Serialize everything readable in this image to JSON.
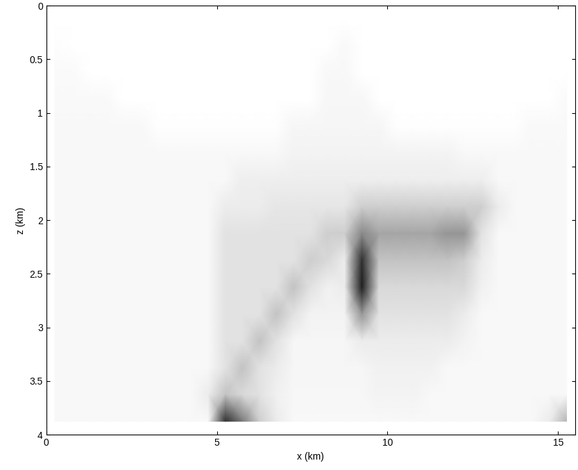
{
  "chart_data": {
    "type": "heatmap",
    "xlabel": "x (km)",
    "ylabel": "z (km)",
    "xlim": [
      0,
      15.5
    ],
    "ylim": [
      4,
      0
    ],
    "xticks": [
      0,
      5,
      10,
      15
    ],
    "yticks": [
      0,
      0.5,
      1,
      1.5,
      2,
      2.5,
      3,
      3.5,
      4
    ],
    "x": [
      0.25,
      0.75,
      1.25,
      1.75,
      2.25,
      2.75,
      3.25,
      3.75,
      4.25,
      4.75,
      5.25,
      5.75,
      6.25,
      6.75,
      7.25,
      7.75,
      8.25,
      8.75,
      9.25,
      9.75,
      10.25,
      10.75,
      11.25,
      11.75,
      12.25,
      12.75,
      13.25,
      13.75,
      14.25,
      14.75,
      15.25
    ],
    "y": [
      0.125,
      0.375,
      0.625,
      0.875,
      1.125,
      1.375,
      1.625,
      1.875,
      2.125,
      2.375,
      2.625,
      2.875,
      3.125,
      3.375,
      3.625,
      3.875
    ],
    "cells": [
      [
        0,
        0,
        0,
        0,
        0,
        0,
        0,
        0,
        0,
        0,
        0,
        0,
        0,
        0,
        0,
        0,
        0,
        0,
        0,
        0,
        0,
        0,
        0,
        0,
        0,
        0,
        0,
        0,
        0,
        0,
        0
      ],
      [
        0.02,
        0,
        0,
        0,
        0,
        0,
        0,
        0,
        0,
        0,
        0,
        0,
        0,
        0,
        0,
        0,
        0,
        0.05,
        0,
        0,
        0,
        0,
        0,
        0,
        0,
        0,
        0,
        0,
        0,
        0,
        0
      ],
      [
        0.04,
        0.04,
        0,
        0,
        0,
        0,
        0,
        0,
        0,
        0,
        0,
        0,
        0,
        0,
        0,
        0,
        0.06,
        0.06,
        0,
        0,
        0,
        0,
        0,
        0,
        0,
        0,
        0,
        0,
        0,
        0,
        0
      ],
      [
        0.05,
        0.05,
        0.05,
        0.05,
        0,
        0,
        0,
        0,
        0,
        0,
        0,
        0,
        0,
        0,
        0,
        0,
        0.07,
        0.07,
        0.07,
        0,
        0,
        0,
        0,
        0,
        0,
        0,
        0,
        0,
        0,
        0,
        0.04
      ],
      [
        0.06,
        0.06,
        0.06,
        0.06,
        0.06,
        0.06,
        0.01,
        0.01,
        0.01,
        0.01,
        0.01,
        0.01,
        0.01,
        0.01,
        0.08,
        0.08,
        0.08,
        0.08,
        0.08,
        0.08,
        0.01,
        0.01,
        0.01,
        0.01,
        0.01,
        0.01,
        0.01,
        0.01,
        0.05,
        0.05,
        0.05
      ],
      [
        0.06,
        0.06,
        0.06,
        0.06,
        0.06,
        0.06,
        0.06,
        0.06,
        0.06,
        0.06,
        0.06,
        0.06,
        0.06,
        0.06,
        0.1,
        0.1,
        0.1,
        0.1,
        0.1,
        0.1,
        0.1,
        0.1,
        0.1,
        0.1,
        0.06,
        0.06,
        0.06,
        0.06,
        0.06,
        0.06,
        0.06
      ],
      [
        0.06,
        0.06,
        0.06,
        0.06,
        0.06,
        0.06,
        0.06,
        0.06,
        0.06,
        0.06,
        0.06,
        0.14,
        0.14,
        0.14,
        0.14,
        0.14,
        0.14,
        0.14,
        0.14,
        0.14,
        0.14,
        0.14,
        0.14,
        0.14,
        0.14,
        0.14,
        0.06,
        0.06,
        0.06,
        0.06,
        0.06
      ],
      [
        0.06,
        0.06,
        0.06,
        0.06,
        0.06,
        0.06,
        0.06,
        0.06,
        0.06,
        0.06,
        0.15,
        0.15,
        0.15,
        0.18,
        0.18,
        0.18,
        0.18,
        0.18,
        0.3,
        0.3,
        0.3,
        0.3,
        0.3,
        0.3,
        0.3,
        0.3,
        0.15,
        0.06,
        0.06,
        0.06,
        0.06
      ],
      [
        0.06,
        0.06,
        0.06,
        0.06,
        0.06,
        0.06,
        0.06,
        0.06,
        0.06,
        0.06,
        0.2,
        0.2,
        0.2,
        0.2,
        0.2,
        0.2,
        0.3,
        0.3,
        0.55,
        0.45,
        0.45,
        0.45,
        0.45,
        0.5,
        0.5,
        0.2,
        0.06,
        0.06,
        0.06,
        0.06,
        0.06
      ],
      [
        0.06,
        0.06,
        0.06,
        0.06,
        0.06,
        0.06,
        0.06,
        0.06,
        0.06,
        0.06,
        0.2,
        0.2,
        0.2,
        0.2,
        0.2,
        0.3,
        0.25,
        0.15,
        0.85,
        0.35,
        0.35,
        0.35,
        0.35,
        0.35,
        0.3,
        0.15,
        0.06,
        0.06,
        0.06,
        0.06,
        0.06
      ],
      [
        0.06,
        0.06,
        0.06,
        0.06,
        0.06,
        0.06,
        0.06,
        0.06,
        0.06,
        0.06,
        0.2,
        0.2,
        0.2,
        0.2,
        0.35,
        0.2,
        0.12,
        0.15,
        0.9,
        0.25,
        0.25,
        0.25,
        0.25,
        0.25,
        0.25,
        0.12,
        0.06,
        0.06,
        0.06,
        0.06,
        0.06
      ],
      [
        0.06,
        0.06,
        0.06,
        0.06,
        0.06,
        0.06,
        0.06,
        0.06,
        0.06,
        0.06,
        0.2,
        0.2,
        0.2,
        0.35,
        0.2,
        0.1,
        0.1,
        0.1,
        0.5,
        0.2,
        0.2,
        0.2,
        0.2,
        0.2,
        0.15,
        0.06,
        0.06,
        0.06,
        0.06,
        0.06,
        0.06
      ],
      [
        0.06,
        0.06,
        0.06,
        0.06,
        0.06,
        0.06,
        0.06,
        0.06,
        0.06,
        0.06,
        0.2,
        0.2,
        0.35,
        0.2,
        0.08,
        0.08,
        0.08,
        0.08,
        0.15,
        0.15,
        0.15,
        0.15,
        0.15,
        0.15,
        0.1,
        0.06,
        0.06,
        0.06,
        0.06,
        0.06,
        0.06
      ],
      [
        0.06,
        0.06,
        0.06,
        0.06,
        0.06,
        0.06,
        0.06,
        0.06,
        0.06,
        0.06,
        0.2,
        0.35,
        0.2,
        0.15,
        0.08,
        0.08,
        0.08,
        0.08,
        0.08,
        0.12,
        0.12,
        0.12,
        0.12,
        0.06,
        0.06,
        0.06,
        0.06,
        0.06,
        0.06,
        0.06,
        0.06
      ],
      [
        0.06,
        0.06,
        0.06,
        0.06,
        0.06,
        0.06,
        0.06,
        0.06,
        0.06,
        0.15,
        0.35,
        0.25,
        0.2,
        0.12,
        0.07,
        0.07,
        0.07,
        0.07,
        0.07,
        0.1,
        0.1,
        0.1,
        0.06,
        0.06,
        0.06,
        0.06,
        0.06,
        0.06,
        0.06,
        0.06,
        0.06
      ],
      [
        0.06,
        0.06,
        0.06,
        0.06,
        0.06,
        0.06,
        0.06,
        0.06,
        0.06,
        0.06,
        0.85,
        0.6,
        0.3,
        0.15,
        0.06,
        0.06,
        0.06,
        0.06,
        0.06,
        0.06,
        0.06,
        0.06,
        0.06,
        0.06,
        0.06,
        0.06,
        0.06,
        0.06,
        0.06,
        0.15,
        0.4
      ]
    ]
  }
}
